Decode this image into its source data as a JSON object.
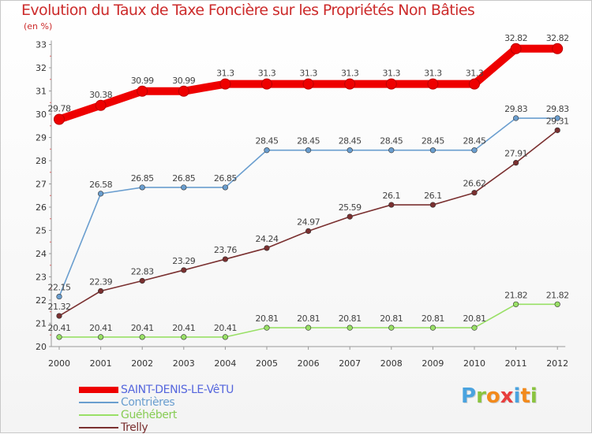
{
  "title": "Evolution du Taux de Taxe Foncière sur les Propriétés Non Bâties",
  "unit": "(en %)",
  "logo": {
    "text": [
      "P",
      "r",
      "o",
      "x",
      "i",
      "t",
      "i"
    ],
    "colors": [
      "#4aa3df",
      "#8ac43f",
      "#f28a1c",
      "#e83e3e",
      "#4aa3df",
      "#f28a1c",
      "#8ac43f"
    ]
  },
  "chart_data": {
    "type": "line",
    "title": "Evolution du Taux de Taxe Foncière sur les Propriétés Non Bâties",
    "ylabel": "(en %)",
    "xlabel": "",
    "ylim": [
      20,
      33
    ],
    "yticks": [
      "20",
      "21",
      "22",
      "23",
      "24",
      "25",
      "26",
      "27",
      "28",
      "29",
      "30",
      "31",
      "32",
      "33"
    ],
    "categories": [
      "2000",
      "2001",
      "2002",
      "2003",
      "2004",
      "2005",
      "2006",
      "2007",
      "2008",
      "2009",
      "2010",
      "2011",
      "2012"
    ],
    "series": [
      {
        "name": "SAINT-DENIS-LE-VêTU",
        "color": "#ee0000",
        "text_color": "#5566dd",
        "values": [
          29.78,
          30.38,
          30.99,
          30.99,
          31.3,
          31.3,
          31.3,
          31.3,
          31.3,
          31.3,
          31.3,
          32.82,
          32.82
        ],
        "labels": [
          "29.78",
          "30.38",
          "30.99",
          "30.99",
          "31.3",
          "31.3",
          "31.3",
          "31.3",
          "31.3",
          "31.3",
          "31.3",
          "32.82",
          "32.82"
        ]
      },
      {
        "name": "Contrières",
        "color": "#6a9ecf",
        "text_color": "#6a9ecf",
        "values": [
          22.15,
          26.58,
          26.85,
          26.85,
          26.85,
          28.45,
          28.45,
          28.45,
          28.45,
          28.45,
          28.45,
          29.83,
          29.83
        ],
        "labels": [
          "22.15",
          "26.58",
          "26.85",
          "26.85",
          "26.85",
          "28.45",
          "28.45",
          "28.45",
          "28.45",
          "28.45",
          "28.45",
          "29.83",
          "29.83"
        ]
      },
      {
        "name": "Guéhébert",
        "color": "#99e066",
        "text_color": "#88cc55",
        "values": [
          20.41,
          20.41,
          20.41,
          20.41,
          20.41,
          20.81,
          20.81,
          20.81,
          20.81,
          20.81,
          20.81,
          21.82,
          21.82
        ],
        "labels": [
          "20.41",
          "20.41",
          "20.41",
          "20.41",
          "20.41",
          "20.81",
          "20.81",
          "20.81",
          "20.81",
          "20.81",
          "20.81",
          "21.82",
          "21.82"
        ]
      },
      {
        "name": "Trelly",
        "color": "#7a3030",
        "text_color": "#7a3030",
        "values": [
          21.32,
          22.39,
          22.83,
          23.29,
          23.76,
          24.24,
          24.97,
          25.59,
          26.1,
          26.1,
          26.62,
          27.91,
          29.31
        ],
        "labels": [
          "21.32",
          "22.39",
          "22.83",
          "23.29",
          "23.76",
          "24.24",
          "24.97",
          "25.59",
          "26.1",
          "26.1",
          "26.62",
          "27.91",
          "29.31"
        ]
      }
    ],
    "grid": false,
    "legend_position": "bottom-left"
  }
}
